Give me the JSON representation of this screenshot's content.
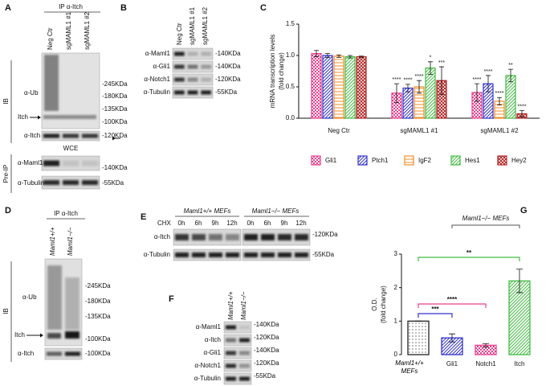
{
  "figure": {
    "A": {
      "letter": "A",
      "ip": "IP α-Itch",
      "lanes": [
        "Neg Ctr",
        "sgMAML1 #1",
        "sgMAML1 #2"
      ],
      "ib": "IB",
      "ub": "α-Ub",
      "itch": "Itch",
      "itch_ab": "α-Itch",
      "kda_ip": [
        "-245KDa",
        "-180KDa",
        "-135KDa",
        "-100KDa"
      ],
      "kda_itch": "-120KDa",
      "wce": "WCE",
      "maml1": "α-Maml1",
      "tubulin": "α-Tubulin",
      "kda_maml1": "-140KDa",
      "kda_tub": "-55KDa",
      "preip": "Pre-IP"
    },
    "B": {
      "letter": "B",
      "lanes": [
        "Neg Ctr",
        "sgMAML1 #1",
        "sgMAML1 #2"
      ],
      "antibodies": [
        "α-Maml1",
        "α-Gli1",
        "α-Notch1",
        "α-Tubulin"
      ],
      "kda": [
        "-140KDa",
        "-140KDa",
        "-120KDa",
        "-55KDa"
      ]
    },
    "D": {
      "letter": "D",
      "ip": "IP α-Itch",
      "lanes": [
        "Maml1+/+",
        "Maml1−/−"
      ],
      "ib": "IB",
      "ub": "α-Ub",
      "itch": "Itch",
      "itch_ab": "α-Itch",
      "kda_ip": [
        "-245KDa",
        "-180KDa",
        "-135KDa",
        "-100KDa"
      ],
      "kda_itch": "-100KDa"
    },
    "E": {
      "letter": "E",
      "groups": [
        "Maml1+/+ MEFs",
        "Maml1−/− MEFs"
      ],
      "chx": "CHX",
      "times": [
        "0h",
        "6h",
        "9h",
        "12h"
      ],
      "antibodies": [
        "α-Itch",
        "α-Tubulin"
      ],
      "kda": [
        "-120KDa",
        "-55KDa"
      ]
    },
    "F": {
      "letter": "F",
      "lanes": [
        "Maml1+/+",
        "Maml1−/−"
      ],
      "antibodies": [
        "α-Maml1",
        "α-Itch",
        "α-Gli1",
        "α-Notch1",
        "α-Tubulin"
      ],
      "kda": [
        "-140KDa",
        "-120KDa",
        "-140KDa",
        "-120KDa",
        "-55KDa"
      ]
    }
  },
  "chart_data": [
    {
      "type": "bar",
      "panel": "C",
      "ylabel": [
        "mRNA transcription levels",
        "(fold change)"
      ],
      "categories": [
        "Neg Ctr",
        "sgMAML1 #1",
        "sgMAML1 #2"
      ],
      "ylim": [
        0,
        1.5
      ],
      "yticks": [
        {
          "value": 0,
          "label": "0.0"
        },
        0.5,
        {
          "value": 1,
          "label": "1.0"
        },
        1.5
      ],
      "series": [
        {
          "name": "Gli1",
          "color": "#e83e8c",
          "hatch": "checker",
          "values": [
            1.03,
            0.4,
            0.41
          ],
          "errors": [
            0.05,
            0.15,
            0.14
          ],
          "significance": [
            null,
            "****",
            "****"
          ]
        },
        {
          "name": "Ptch1",
          "color": "#3333cc",
          "hatch": "diag",
          "values": [
            1.0,
            0.48,
            0.55
          ],
          "errors": [
            0.03,
            0.06,
            0.13
          ],
          "significance": [
            null,
            "****",
            "****"
          ]
        },
        {
          "name": "IgF2",
          "color": "#f28c28",
          "hatch": "hline",
          "values": [
            0.99,
            0.5,
            0.27
          ],
          "errors": [
            0.02,
            0.1,
            0.06
          ],
          "significance": [
            null,
            "****",
            "****"
          ]
        },
        {
          "name": "Hes1",
          "color": "#44bb44",
          "hatch": "diag",
          "values": [
            0.98,
            0.8,
            0.68
          ],
          "errors": [
            0.02,
            0.1,
            0.1
          ],
          "significance": [
            null,
            "*",
            "**"
          ]
        },
        {
          "name": "Hey2",
          "color": "#b22222",
          "hatch": "cross",
          "values": [
            0.98,
            0.6,
            0.07
          ],
          "errors": [
            0.01,
            0.22,
            0.05
          ],
          "significance": [
            null,
            "***",
            "****"
          ]
        }
      ]
    },
    {
      "type": "bar",
      "panel": "G",
      "ylabel": [
        "O.D.",
        "(fold change)"
      ],
      "categories": [
        "Maml1+/+ MEFs",
        "Gli1",
        "Notch1",
        "Itch"
      ],
      "ylim": [
        0,
        3
      ],
      "yticks": [
        0,
        1,
        2,
        3
      ],
      "values": [
        1.0,
        0.5,
        0.28,
        2.2
      ],
      "errors": [
        0.0,
        0.12,
        0.05,
        0.35
      ],
      "colors": [
        "#222222",
        "#3333cc",
        "#e83e8c",
        "#44bb44"
      ],
      "hatches": [
        "dots",
        "diag",
        "checker",
        "diag"
      ],
      "annotations": [
        "***",
        "****",
        "**"
      ],
      "bracket_label": "Maml1−/− MEFs"
    }
  ]
}
